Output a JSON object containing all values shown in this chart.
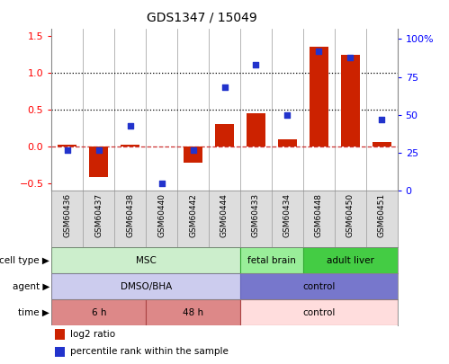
{
  "title": "GDS1347 / 15049",
  "samples": [
    "GSM60436",
    "GSM60437",
    "GSM60438",
    "GSM60440",
    "GSM60442",
    "GSM60444",
    "GSM60433",
    "GSM60434",
    "GSM60448",
    "GSM60450",
    "GSM60451"
  ],
  "log2_ratio": [
    0.02,
    -0.42,
    0.02,
    0.0,
    -0.22,
    0.3,
    0.45,
    0.1,
    1.35,
    1.25,
    0.06
  ],
  "percentile_rank": [
    27,
    27,
    43,
    5,
    27,
    68,
    83,
    50,
    92,
    88,
    47
  ],
  "bar_color": "#cc2200",
  "dot_color": "#2233cc",
  "left_ylim": [
    -0.6,
    1.6
  ],
  "right_ylim": [
    0,
    106.67
  ],
  "left_yticks": [
    -0.5,
    0.0,
    0.5,
    1.0,
    1.5
  ],
  "right_yticks": [
    0,
    25,
    50,
    75,
    100
  ],
  "right_yticklabels": [
    "0",
    "25",
    "50",
    "75",
    "100%"
  ],
  "cell_type_groups": [
    {
      "label": "MSC",
      "start": 0,
      "end": 5,
      "color": "#cceecc",
      "border_color": "#33aa33"
    },
    {
      "label": "fetal brain",
      "start": 6,
      "end": 7,
      "color": "#99ee99",
      "border_color": "#33aa33"
    },
    {
      "label": "adult liver",
      "start": 8,
      "end": 10,
      "color": "#44cc44",
      "border_color": "#33aa33"
    }
  ],
  "agent_groups": [
    {
      "label": "DMSO/BHA",
      "start": 0,
      "end": 5,
      "color": "#ccccee",
      "border_color": "#6666bb"
    },
    {
      "label": "control",
      "start": 6,
      "end": 10,
      "color": "#7777cc",
      "border_color": "#6666bb"
    }
  ],
  "time_groups": [
    {
      "label": "6 h",
      "start": 0,
      "end": 2,
      "color": "#dd8888",
      "border_color": "#aa4444"
    },
    {
      "label": "48 h",
      "start": 3,
      "end": 5,
      "color": "#dd8888",
      "border_color": "#aa4444"
    },
    {
      "label": "control",
      "start": 6,
      "end": 10,
      "color": "#ffdddd",
      "border_color": "#aa4444"
    }
  ],
  "legend_items": [
    {
      "label": "log2 ratio",
      "color": "#cc2200"
    },
    {
      "label": "percentile rank within the sample",
      "color": "#2233cc"
    }
  ],
  "bg_color": "#ffffff"
}
